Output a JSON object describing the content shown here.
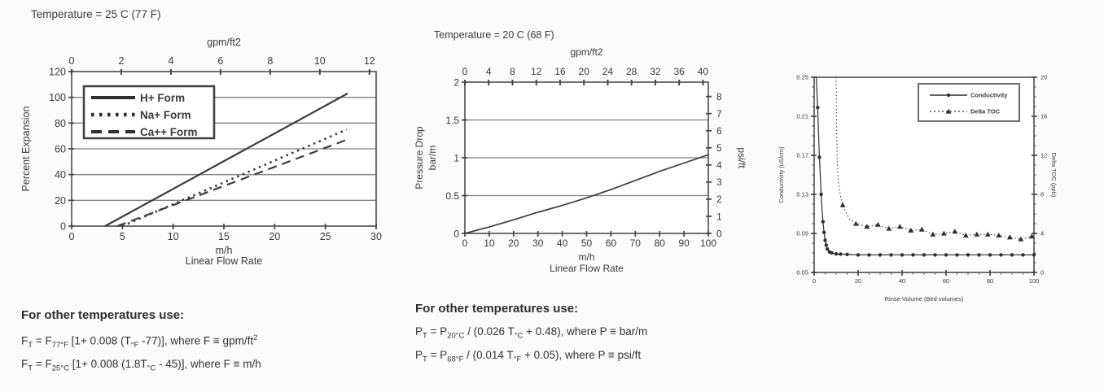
{
  "chart_data": [
    {
      "id": "expansion-chart",
      "type": "line",
      "title": "Temperature = 25 C (77 F)",
      "x_axis": {
        "label": "m/h",
        "sublabel": "Linear Flow Rate",
        "range": [
          0,
          30
        ],
        "ticks": [
          0,
          5,
          10,
          15,
          20,
          25,
          30
        ]
      },
      "x_top_axis": {
        "label": "gpm/ft2",
        "range": [
          0,
          12.27
        ],
        "ticks": [
          0,
          2,
          4,
          6,
          8,
          10,
          12
        ]
      },
      "y_axis": {
        "label": "Percent Expansion",
        "range": [
          0,
          120
        ],
        "ticks": [
          0,
          20,
          40,
          60,
          80,
          100,
          120
        ],
        "grid": true
      },
      "legend": {
        "position": "top-left-inside",
        "labels": [
          "H+ Form",
          "Na+ Form",
          "Ca++ Form"
        ]
      },
      "series": [
        {
          "name": "H+ Form",
          "style": "solid",
          "points": [
            [
              3.3,
              0
            ],
            [
              27.2,
              103
            ]
          ]
        },
        {
          "name": "Na+ Form",
          "style": "dotted",
          "points": [
            [
              5,
              0
            ],
            [
              27.1,
              75
            ]
          ]
        },
        {
          "name": "Ca++ Form",
          "style": "dashed",
          "points": [
            [
              4.5,
              0
            ],
            [
              27.1,
              67
            ]
          ]
        }
      ]
    },
    {
      "id": "pressure-chart",
      "type": "line",
      "title": "Temperature = 20 C (68 F)",
      "x_axis": {
        "label": "m/h",
        "sublabel": "Linear Flow Rate",
        "range": [
          0,
          100
        ],
        "ticks": [
          0,
          10,
          20,
          30,
          40,
          50,
          60,
          70,
          80,
          90,
          100
        ]
      },
      "x_top_axis": {
        "label": "gpm/ft2",
        "range": [
          0,
          40.9
        ],
        "ticks": [
          0,
          4,
          8,
          12,
          16,
          20,
          24,
          28,
          32,
          36,
          40
        ]
      },
      "y_axis": {
        "label": "Pressure Drop",
        "sublabel": "bar/m",
        "range": [
          0,
          2
        ],
        "ticks": [
          0,
          0.5,
          1,
          1.5,
          2
        ],
        "grid": true
      },
      "y_right_axis": {
        "label": "psi/ft",
        "range": [
          0,
          8.84
        ],
        "ticks": [
          0,
          1,
          2,
          3,
          4,
          5,
          6,
          7,
          8
        ]
      },
      "series": [
        {
          "name": "Pressure Drop",
          "style": "solid",
          "points": [
            [
              0,
              0
            ],
            [
              10,
              0.085
            ],
            [
              20,
              0.18
            ],
            [
              30,
              0.28
            ],
            [
              40,
              0.37
            ],
            [
              50,
              0.47
            ],
            [
              60,
              0.58
            ],
            [
              70,
              0.7
            ],
            [
              80,
              0.82
            ],
            [
              90,
              0.93
            ],
            [
              100,
              1.04
            ]
          ]
        }
      ]
    },
    {
      "id": "rinse-chart",
      "type": "line",
      "title": "",
      "x_axis": {
        "label": "Rinse Volume (Bed volumes)",
        "range": [
          0,
          100
        ],
        "ticks": [
          0,
          20,
          40,
          60,
          80,
          100
        ],
        "minor_step": 5
      },
      "y_axis": {
        "label": "Conductivity (uS/cm)",
        "range": [
          0.05,
          0.25
        ],
        "ticks": [
          0.05,
          0.09,
          0.13,
          0.17,
          0.21,
          0.25
        ],
        "minor_step": 0.01
      },
      "y_right_axis": {
        "label": "Delta TOC (ppb)",
        "range": [
          0,
          20
        ],
        "ticks": [
          0,
          4,
          8,
          12,
          16,
          20
        ],
        "minor_step": 1
      },
      "legend": {
        "position": "top-right-inside",
        "labels": [
          "Conductivity",
          "Delta TOC"
        ]
      },
      "series": [
        {
          "name": "Conductivity",
          "style": "solid",
          "marker": "circle",
          "axis": "left",
          "points": [
            [
              1,
              0.25
            ],
            [
              1.2,
              0.238
            ],
            [
              1.6,
              0.219
            ],
            [
              2,
              0.192
            ],
            [
              2.4,
              0.168
            ],
            [
              2.8,
              0.148
            ],
            [
              3.2,
              0.13
            ],
            [
              3.6,
              0.114
            ],
            [
              4,
              0.102
            ],
            [
              4.5,
              0.091
            ],
            [
              5,
              0.083
            ],
            [
              5.5,
              0.078
            ],
            [
              6,
              0.074
            ],
            [
              7,
              0.071
            ],
            [
              8,
              0.07
            ],
            [
              10,
              0.069
            ],
            [
              15,
              0.0685
            ],
            [
              20,
              0.068
            ],
            [
              30,
              0.068
            ],
            [
              40,
              0.068
            ],
            [
              50,
              0.068
            ],
            [
              60,
              0.068
            ],
            [
              70,
              0.068
            ],
            [
              80,
              0.068
            ],
            [
              90,
              0.068
            ],
            [
              100,
              0.068
            ]
          ],
          "marker_points": [
            [
              1.6,
              0.219
            ],
            [
              2.4,
              0.168
            ],
            [
              3.2,
              0.13
            ],
            [
              4,
              0.102
            ],
            [
              4.5,
              0.091
            ],
            [
              5,
              0.083
            ],
            [
              5.5,
              0.078
            ],
            [
              6,
              0.074
            ],
            [
              7,
              0.071
            ],
            [
              8,
              0.07
            ],
            [
              10,
              0.069
            ],
            [
              12,
              0.0688
            ],
            [
              15,
              0.0685
            ],
            [
              20,
              0.068
            ],
            [
              25,
              0.068
            ],
            [
              30,
              0.068
            ],
            [
              35,
              0.068
            ],
            [
              40,
              0.068
            ],
            [
              45,
              0.068
            ],
            [
              50,
              0.068
            ],
            [
              55,
              0.068
            ],
            [
              60,
              0.068
            ],
            [
              65,
              0.068
            ],
            [
              70,
              0.068
            ],
            [
              75,
              0.068
            ],
            [
              80,
              0.068
            ],
            [
              85,
              0.068
            ],
            [
              90,
              0.068
            ],
            [
              95,
              0.068
            ],
            [
              100,
              0.068
            ]
          ]
        },
        {
          "name": "Delta TOC",
          "style": "dotted",
          "marker": "triangle",
          "axis": "right",
          "points": [
            [
              10,
              20
            ],
            [
              10.2,
              15
            ],
            [
              10.5,
              11.5
            ],
            [
              11,
              9.2
            ],
            [
              11.7,
              8.2
            ],
            [
              12.5,
              7.4
            ],
            [
              13,
              6.9
            ],
            [
              14,
              6.4
            ],
            [
              16,
              5.5
            ],
            [
              19,
              5
            ],
            [
              24,
              4.7
            ],
            [
              29,
              4.9
            ],
            [
              34,
              4.5
            ],
            [
              39,
              4.7
            ],
            [
              44,
              4.3
            ],
            [
              49,
              4.4
            ],
            [
              54,
              3.9
            ],
            [
              59,
              4
            ],
            [
              64,
              4.2
            ],
            [
              69,
              3.8
            ],
            [
              74,
              3.9
            ],
            [
              79,
              3.9
            ],
            [
              84,
              3.8
            ],
            [
              89,
              3.6
            ],
            [
              94,
              3.4
            ],
            [
              99,
              3.7
            ]
          ],
          "marker_points": [
            [
              13,
              6.9
            ],
            [
              19,
              5
            ],
            [
              24,
              4.7
            ],
            [
              29,
              4.9
            ],
            [
              34,
              4.5
            ],
            [
              39,
              4.7
            ],
            [
              44,
              4.3
            ],
            [
              49,
              4.4
            ],
            [
              54,
              3.9
            ],
            [
              59,
              4
            ],
            [
              64,
              4.2
            ],
            [
              69,
              3.8
            ],
            [
              74,
              3.9
            ],
            [
              79,
              3.9
            ],
            [
              84,
              3.8
            ],
            [
              89,
              3.6
            ],
            [
              94,
              3.4
            ],
            [
              99,
              3.7
            ]
          ]
        }
      ]
    }
  ],
  "notes": [
    {
      "heading": "For other temperatures use:",
      "lines": [
        [
          {
            "k": "t",
            "v": "F"
          },
          {
            "k": "sub",
            "v": "T"
          },
          {
            "k": "t",
            "v": " = F"
          },
          {
            "k": "sub",
            "v": "77°F"
          },
          {
            "k": "t",
            "v": " [1+ 0.008 (T"
          },
          {
            "k": "sub",
            "v": "°F"
          },
          {
            "k": "t",
            "v": " -77)], where F ≡ gpm/ft"
          },
          {
            "k": "sup",
            "v": "2"
          }
        ],
        [
          {
            "k": "t",
            "v": "F"
          },
          {
            "k": "sub",
            "v": "T"
          },
          {
            "k": "t",
            "v": " = F"
          },
          {
            "k": "sub",
            "v": "25°C"
          },
          {
            "k": "t",
            "v": " [1+ 0.008 (1.8T"
          },
          {
            "k": "sub",
            "v": "°C"
          },
          {
            "k": "t",
            "v": " - 45)], where F ≡ m/h"
          }
        ]
      ]
    },
    {
      "heading": "For other temperatures use:",
      "lines": [
        [
          {
            "k": "t",
            "v": "P"
          },
          {
            "k": "sub",
            "v": "T"
          },
          {
            "k": "t",
            "v": " = P"
          },
          {
            "k": "sub",
            "v": "20°C"
          },
          {
            "k": "t",
            "v": " / (0.026 T"
          },
          {
            "k": "sub",
            "v": "°C"
          },
          {
            "k": "t",
            "v": " + 0.48), where P ≡ bar/m"
          }
        ],
        [
          {
            "k": "t",
            "v": "P"
          },
          {
            "k": "sub",
            "v": "T"
          },
          {
            "k": "t",
            "v": " = P"
          },
          {
            "k": "sub",
            "v": "68°F"
          },
          {
            "k": "t",
            "v": " / (0.014 T"
          },
          {
            "k": "sub",
            "v": "°F"
          },
          {
            "k": "t",
            "v": " + 0.05), where P ≡ psi/ft"
          }
        ]
      ]
    }
  ]
}
